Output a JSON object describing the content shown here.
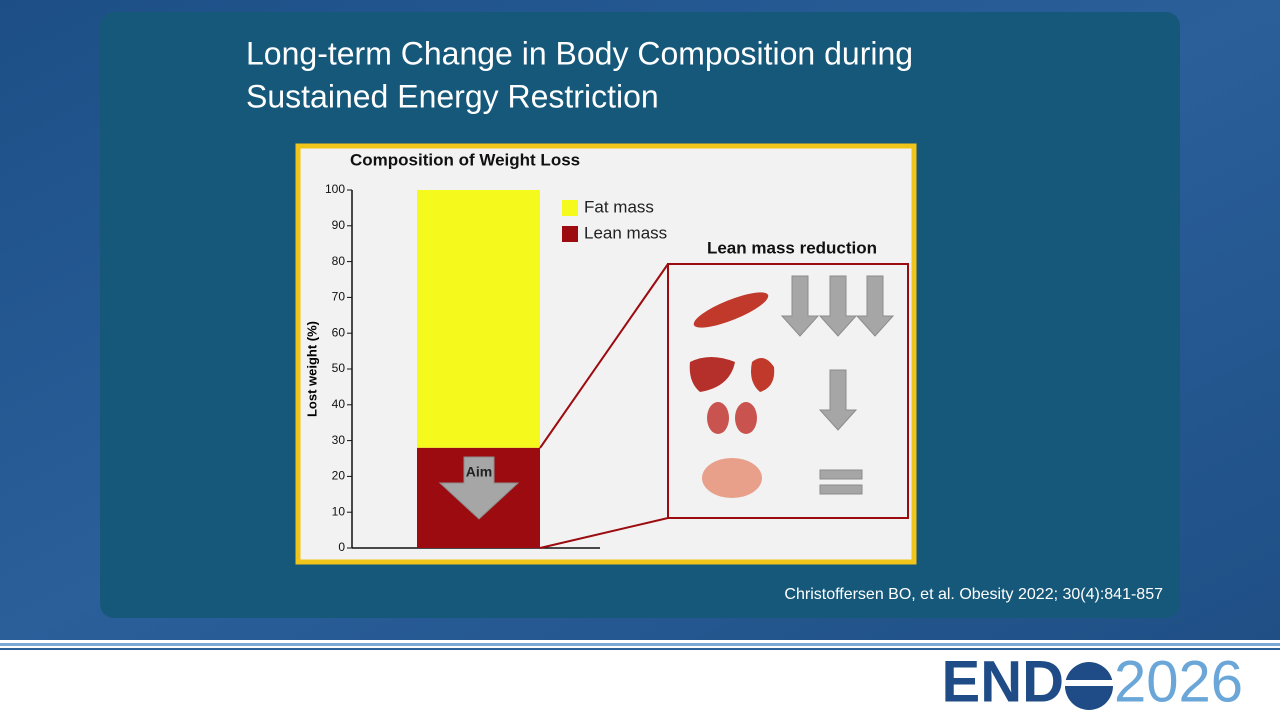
{
  "slide": {
    "title_lines": [
      "Long-term Change in Body Composition during",
      "Sustained Energy Restriction"
    ],
    "citation": "Christoffersen BO, et al. Obesity 2022; 30(4):841-857",
    "logo": {
      "left": "END",
      "right": "2026"
    }
  },
  "chart_data": {
    "type": "bar",
    "stacked": true,
    "title": "Composition of Weight Loss",
    "y_label": "Lost weight (%)",
    "categories": [
      null
    ],
    "series": [
      {
        "name": "Lean mass",
        "color": "#9b0b0f",
        "values": [
          28
        ]
      },
      {
        "name": "Fat mass",
        "color": "#f5fa1c",
        "values": [
          72
        ]
      }
    ],
    "ylim": [
      0,
      100
    ],
    "yticks": [
      0,
      10,
      20,
      30,
      40,
      50,
      60,
      70,
      80,
      90,
      100
    ],
    "legend": "upper right",
    "annotations": [
      "Aim",
      "Lean mass reduction"
    ]
  }
}
